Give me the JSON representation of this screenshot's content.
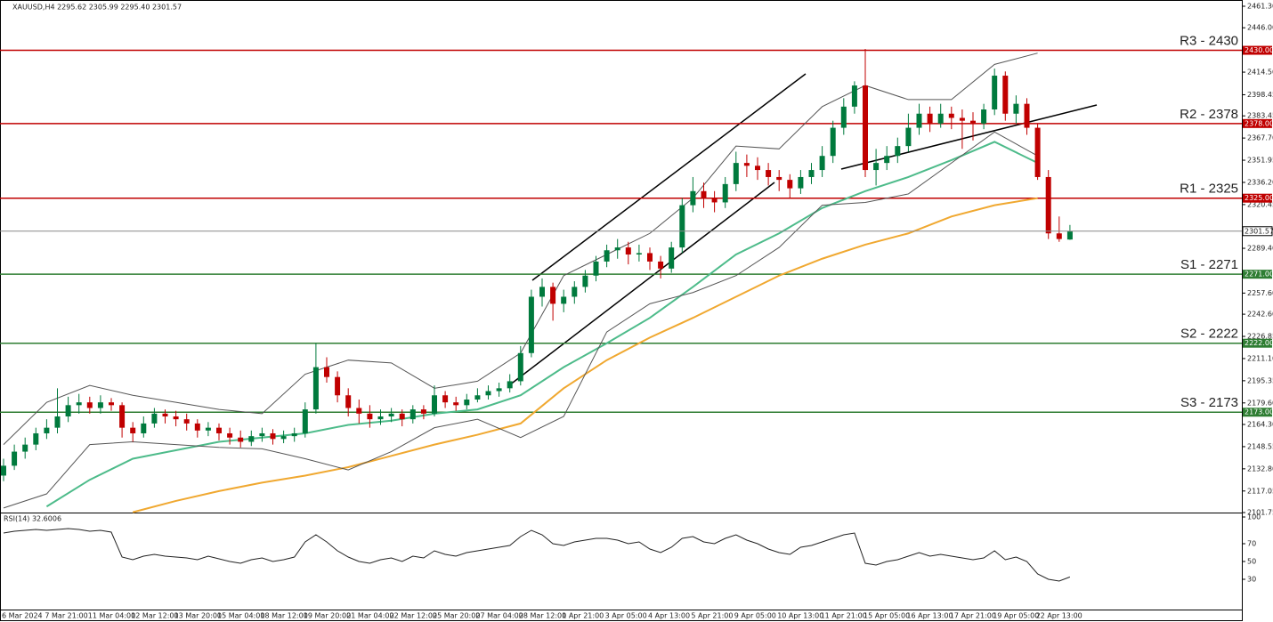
{
  "chart_data": [
    {
      "type": "candlestick",
      "title": "XAUUSD,H4  2295.62 2305.99 2295.40 2301.57",
      "ylim": [
        2101.75,
        2461.3
      ],
      "yticks": [
        {
          "value": 2461.3,
          "label": "2461.30"
        },
        {
          "value": 2446,
          "label": "2446.00"
        },
        {
          "value": 2414.5,
          "label": "2414.50"
        },
        2398.45,
        2383.45,
        {
          "value": 2367.7,
          "label": "2367.70"
        },
        2351.95,
        {
          "value": 2336.2,
          "label": "2336.20"
        },
        2320.45,
        {
          "value": 2289.4,
          "label": "2289.40"
        },
        {
          "value": 2257.6,
          "label": "2257.60"
        },
        {
          "value": 2242.6,
          "label": "2242.60"
        },
        2226.85,
        {
          "value": 2211.1,
          "label": "2211.10"
        },
        2195.35,
        {
          "value": 2179.6,
          "label": "2179.60"
        },
        {
          "value": 2164.3,
          "label": "2164.30"
        },
        2148.55,
        {
          "value": 2132.8,
          "label": "2132.80"
        },
        2117.05,
        2101.75
      ],
      "grid": false,
      "up_color": "#007a3d",
      "down_color": "#c00000",
      "categories": [
        "6 Mar 2024",
        null,
        null,
        null,
        "7 Mar 21:00",
        null,
        null,
        null,
        "11 Mar 04:00",
        null,
        null,
        null,
        "12 Mar 12:00",
        null,
        null,
        null,
        "13 Mar 20:00",
        null,
        null,
        null,
        "15 Mar 04:00",
        null,
        null,
        null,
        "18 Mar 12:00",
        null,
        null,
        null,
        "19 Mar 20:00",
        null,
        null,
        null,
        "21 Mar 04:00",
        null,
        null,
        null,
        "22 Mar 12:00",
        null,
        null,
        null,
        "25 Mar 20:00",
        null,
        null,
        null,
        "27 Mar 04:00",
        null,
        null,
        null,
        "28 Mar 12:00",
        null,
        null,
        null,
        "1 Apr 21:00",
        null,
        null,
        null,
        "3 Apr 05:00",
        null,
        null,
        null,
        "4 Apr 13:00",
        null,
        null,
        null,
        "5 Apr 21:00",
        null,
        null,
        null,
        "9 Apr 05:00",
        null,
        null,
        null,
        "10 Apr 13:00",
        null,
        null,
        null,
        "11 Apr 21:00",
        null,
        null,
        null,
        "15 Apr 05:00",
        null,
        null,
        null,
        "16 Apr 13:00",
        null,
        null,
        null,
        "17 Apr 21:00",
        null,
        null,
        null,
        "19 Apr 05:00",
        null,
        null,
        null,
        "22 Apr 13:00",
        null,
        null,
        null
      ],
      "ohlc": [
        [
          2128,
          2140,
          2124,
          2135
        ],
        [
          2135,
          2150,
          2132,
          2145
        ],
        [
          2145,
          2155,
          2140,
          2150
        ],
        [
          2150,
          2162,
          2146,
          2158
        ],
        [
          2158,
          2168,
          2154,
          2162
        ],
        [
          2162,
          2190,
          2158,
          2170
        ],
        [
          2170,
          2184,
          2166,
          2178
        ],
        [
          2178,
          2186,
          2172,
          2180
        ],
        [
          2180,
          2184,
          2172,
          2176
        ],
        [
          2176,
          2185,
          2172,
          2180
        ],
        [
          2180,
          2183,
          2174,
          2178
        ],
        [
          2178,
          2180,
          2155,
          2162
        ],
        [
          2162,
          2166,
          2152,
          2158
        ],
        [
          2158,
          2170,
          2155,
          2165
        ],
        [
          2165,
          2176,
          2162,
          2172
        ],
        [
          2172,
          2175,
          2165,
          2170
        ],
        [
          2170,
          2174,
          2163,
          2168
        ],
        [
          2168,
          2172,
          2160,
          2165
        ],
        [
          2165,
          2168,
          2155,
          2160
        ],
        [
          2160,
          2166,
          2156,
          2162
        ],
        [
          2162,
          2165,
          2153,
          2158
        ],
        [
          2158,
          2162,
          2150,
          2155
        ],
        [
          2155,
          2160,
          2148,
          2152
        ],
        [
          2152,
          2160,
          2149,
          2156
        ],
        [
          2156,
          2162,
          2152,
          2158
        ],
        [
          2158,
          2161,
          2150,
          2154
        ],
        [
          2154,
          2160,
          2151,
          2156
        ],
        [
          2156,
          2162,
          2152,
          2158
        ],
        [
          2158,
          2180,
          2155,
          2175
        ],
        [
          2175,
          2222,
          2172,
          2205
        ],
        [
          2205,
          2212,
          2194,
          2198
        ],
        [
          2198,
          2202,
          2180,
          2185
        ],
        [
          2185,
          2190,
          2170,
          2176
        ],
        [
          2176,
          2182,
          2165,
          2172
        ],
        [
          2172,
          2178,
          2162,
          2168
        ],
        [
          2168,
          2175,
          2164,
          2170
        ],
        [
          2170,
          2176,
          2166,
          2172
        ],
        [
          2172,
          2175,
          2163,
          2168
        ],
        [
          2168,
          2178,
          2165,
          2175
        ],
        [
          2175,
          2178,
          2168,
          2172
        ],
        [
          2172,
          2192,
          2170,
          2185
        ],
        [
          2185,
          2188,
          2176,
          2180
        ],
        [
          2180,
          2184,
          2174,
          2178
        ],
        [
          2178,
          2186,
          2175,
          2182
        ],
        [
          2182,
          2190,
          2180,
          2185
        ],
        [
          2185,
          2192,
          2182,
          2188
        ],
        [
          2188,
          2194,
          2184,
          2190
        ],
        [
          2190,
          2200,
          2187,
          2195
        ],
        [
          2195,
          2220,
          2192,
          2215
        ],
        [
          2215,
          2260,
          2212,
          2255
        ],
        [
          2255,
          2268,
          2248,
          2262
        ],
        [
          2262,
          2265,
          2238,
          2250
        ],
        [
          2250,
          2260,
          2244,
          2255
        ],
        [
          2255,
          2266,
          2250,
          2262
        ],
        [
          2262,
          2274,
          2258,
          2270
        ],
        [
          2270,
          2284,
          2266,
          2280
        ],
        [
          2280,
          2292,
          2276,
          2288
        ],
        [
          2288,
          2296,
          2282,
          2290
        ],
        [
          2290,
          2294,
          2278,
          2285
        ],
        [
          2285,
          2292,
          2280,
          2286
        ],
        [
          2286,
          2290,
          2274,
          2280
        ],
        [
          2280,
          2284,
          2268,
          2275
        ],
        [
          2275,
          2294,
          2272,
          2290
        ],
        [
          2290,
          2325,
          2286,
          2320
        ],
        [
          2320,
          2340,
          2315,
          2330
        ],
        [
          2330,
          2336,
          2318,
          2325
        ],
        [
          2325,
          2330,
          2315,
          2322
        ],
        [
          2322,
          2340,
          2318,
          2335
        ],
        [
          2335,
          2358,
          2330,
          2350
        ],
        [
          2350,
          2356,
          2340,
          2348
        ],
        [
          2348,
          2354,
          2338,
          2345
        ],
        [
          2345,
          2350,
          2334,
          2340
        ],
        [
          2340,
          2345,
          2330,
          2338
        ],
        [
          2338,
          2342,
          2325,
          2332
        ],
        [
          2332,
          2345,
          2328,
          2340
        ],
        [
          2340,
          2350,
          2335,
          2345
        ],
        [
          2345,
          2362,
          2340,
          2355
        ],
        [
          2355,
          2380,
          2350,
          2375
        ],
        [
          2375,
          2396,
          2370,
          2390
        ],
        [
          2390,
          2408,
          2385,
          2405
        ],
        [
          2405,
          2431,
          2340,
          2345
        ],
        [
          2345,
          2360,
          2334,
          2350
        ],
        [
          2350,
          2362,
          2345,
          2355
        ],
        [
          2355,
          2368,
          2350,
          2362
        ],
        [
          2362,
          2385,
          2358,
          2375
        ],
        [
          2375,
          2392,
          2370,
          2385
        ],
        [
          2385,
          2390,
          2372,
          2378
        ],
        [
          2378,
          2392,
          2375,
          2385
        ],
        [
          2385,
          2390,
          2374,
          2382
        ],
        [
          2382,
          2388,
          2360,
          2380
        ],
        [
          2380,
          2386,
          2366,
          2378
        ],
        [
          2378,
          2392,
          2374,
          2388
        ],
        [
          2388,
          2417,
          2384,
          2412
        ],
        [
          2412,
          2415,
          2380,
          2385
        ],
        [
          2385,
          2398,
          2378,
          2392
        ],
        [
          2392,
          2396,
          2370,
          2375
        ],
        [
          2375,
          2378,
          2338,
          2340
        ],
        [
          2340,
          2345,
          2296,
          2300
        ],
        [
          2300,
          2312,
          2294,
          2296
        ],
        [
          2295.62,
          2305.99,
          2295.4,
          2301.57
        ]
      ],
      "overlays": [
        {
          "color": "#f0a830",
          "values": [
            null,
            null,
            null,
            2102,
            2110,
            2117,
            2123,
            2128,
            2134,
            2142,
            2150,
            2157,
            2165,
            2190,
            2210,
            2226,
            2240,
            2255,
            2270,
            2282,
            2292,
            2300,
            2312,
            2320,
            2325
          ]
        },
        {
          "color": "#4dbb8a",
          "values": [
            null,
            2106,
            2125,
            2140,
            2146,
            2152,
            2155,
            2158,
            2164,
            2167,
            2172,
            2175,
            2185,
            2205,
            2222,
            2240,
            2262,
            2285,
            2300,
            2318,
            2330,
            2340,
            2352,
            2365,
            2350
          ]
        },
        {
          "color": "#555555",
          "values": [
            2150,
            2180,
            2192,
            2185,
            2180,
            2175,
            2172,
            2200,
            2210,
            2208,
            2190,
            2195,
            2215,
            2270,
            2285,
            2300,
            2325,
            2362,
            2360,
            2390,
            2405,
            2395,
            2395,
            2420,
            2428
          ]
        },
        {
          "color": "#555555",
          "values": [
            2105,
            2115,
            2150,
            2152,
            2150,
            2148,
            2147,
            2140,
            2132,
            2145,
            2162,
            2168,
            2155,
            2170,
            2230,
            2250,
            2258,
            2270,
            2290,
            2320,
            2322,
            2328,
            2350,
            2372,
            2355
          ]
        }
      ],
      "levels": [
        {
          "label": "R3 - 2430",
          "value": 2430,
          "tag": "2430.00",
          "color": "#c00000"
        },
        {
          "label": "R2 - 2378",
          "value": 2378,
          "tag": "2378.00",
          "color": "#c00000"
        },
        {
          "label": "R1 - 2325",
          "value": 2325,
          "tag": "2325.00",
          "color": "#c00000"
        },
        {
          "label": "S1 - 2271",
          "value": 2271,
          "tag": "2271.00",
          "color": "#2e7d32"
        },
        {
          "label": "S2 - 2222",
          "value": 2222,
          "tag": "2222.00",
          "color": "#2e7d32"
        },
        {
          "label": "S3 - 2173",
          "value": 2173,
          "tag": "2173.00",
          "color": "#2e7d32"
        }
      ]
    },
    {
      "type": "line",
      "title": "RSI(14) 32.6006",
      "ylim": [
        0,
        100
      ],
      "yticks": [
        100,
        70,
        50,
        30
      ],
      "color": "#222222",
      "values": [
        82,
        84,
        85,
        86,
        85,
        86,
        87,
        86,
        84,
        85,
        83,
        55,
        52,
        56,
        58,
        56,
        55,
        54,
        52,
        56,
        53,
        50,
        48,
        52,
        54,
        50,
        52,
        55,
        72,
        80,
        72,
        62,
        55,
        50,
        48,
        52,
        54,
        50,
        56,
        54,
        62,
        58,
        56,
        60,
        62,
        64,
        66,
        68,
        78,
        85,
        80,
        70,
        68,
        72,
        74,
        76,
        76,
        74,
        70,
        72,
        64,
        60,
        66,
        76,
        78,
        72,
        70,
        76,
        80,
        74,
        70,
        64,
        60,
        58,
        66,
        68,
        72,
        76,
        80,
        82,
        48,
        46,
        50,
        52,
        56,
        60,
        56,
        58,
        56,
        54,
        52,
        54,
        62,
        52,
        55,
        50,
        36,
        30,
        28,
        32.6006
      ]
    }
  ]
}
